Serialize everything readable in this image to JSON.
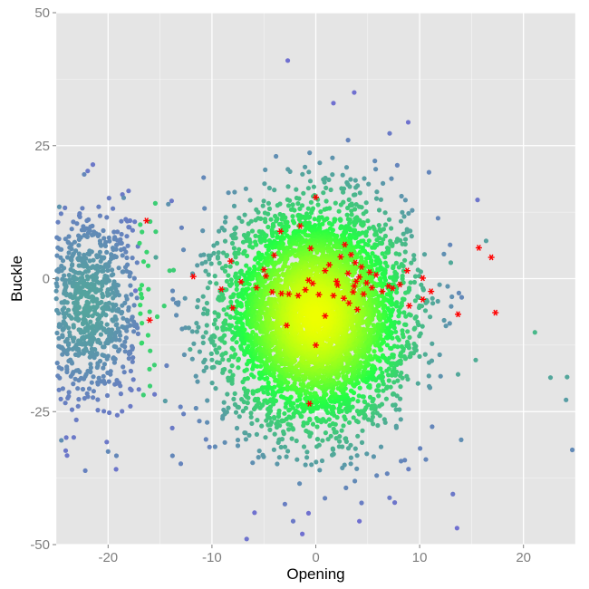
{
  "chart_data": {
    "type": "scatter",
    "title": "",
    "xlabel": "Opening",
    "ylabel": "Buckle",
    "xlim": [
      -25,
      25
    ],
    "ylim": [
      -50,
      50
    ],
    "x_ticks": [
      -20,
      -10,
      0,
      10,
      20
    ],
    "y_ticks": [
      -50,
      -25,
      0,
      25,
      50
    ],
    "x_tick_labels": [
      "-20",
      "-10",
      "0",
      "10",
      "20"
    ],
    "y_tick_labels": [
      "-50",
      "-25",
      "0",
      "25",
      "50"
    ],
    "grid": true,
    "legend": "none",
    "colors": {
      "panel_background": "#e5e5e5",
      "gridline": "#ffffff",
      "density_high": "#eeff00",
      "density_mid": "#22ff44",
      "density_low": "#7070d0",
      "highlight": "#ff0000"
    },
    "density_cloud": {
      "description_values": {
        "main_cluster_center": [
          0,
          -7
        ],
        "main_cluster_sd": [
          4.3,
          10
        ],
        "left_cluster_center": [
          -22,
          -5
        ],
        "left_cluster_sd": [
          2.8,
          9
        ]
      },
      "scattered_points": [
        {
          "x": -2.7,
          "y": 41
        },
        {
          "x": 3.7,
          "y": 35
        },
        {
          "x": 1.7,
          "y": 33
        },
        {
          "x": -22.3,
          "y": 19.6
        },
        {
          "x": -24.7,
          "y": 13.5
        },
        {
          "x": -18.5,
          "y": 15.2
        },
        {
          "x": -14.2,
          "y": 14.0
        },
        {
          "x": -10.8,
          "y": 19.0
        },
        {
          "x": 16.4,
          "y": 7.1
        },
        {
          "x": 21.1,
          "y": -10.1
        },
        {
          "x": 22.6,
          "y": -18.6
        },
        {
          "x": 24.2,
          "y": -18.5
        },
        {
          "x": 24.1,
          "y": -22.8
        },
        {
          "x": 24.7,
          "y": -32.2
        },
        {
          "x": 13.2,
          "y": -40.5
        },
        {
          "x": 13.6,
          "y": -46.9
        },
        {
          "x": -1.3,
          "y": -48.0
        },
        {
          "x": -0.7,
          "y": -44.1
        },
        {
          "x": 4.2,
          "y": -45.6
        },
        {
          "x": -24.5,
          "y": -30.4
        },
        {
          "x": -22.2,
          "y": -36.1
        },
        {
          "x": -13.0,
          "y": -34.8
        },
        {
          "x": -13.8,
          "y": -33.3
        },
        {
          "x": -20.0,
          "y": -32.5
        },
        {
          "x": -19.2,
          "y": -33.3
        },
        {
          "x": 14.0,
          "y": -30.3
        },
        {
          "x": 10.6,
          "y": -34.0
        },
        {
          "x": -9.7,
          "y": -31.6
        },
        {
          "x": 13.7,
          "y": -18.0
        },
        {
          "x": -14.5,
          "y": -23.0
        },
        {
          "x": 15.4,
          "y": -15.3
        },
        {
          "x": -12.1,
          "y": -13.3
        },
        {
          "x": -15.4,
          "y": 4.0
        },
        {
          "x": 13.0,
          "y": 3.0
        },
        {
          "x": -5.9,
          "y": -44.0
        },
        {
          "x": 7.6,
          "y": -42.1
        },
        {
          "x": 10.9,
          "y": 20.0
        },
        {
          "x": 8.9,
          "y": 29.4
        }
      ]
    },
    "highlighted_points": [
      {
        "x": -16.3,
        "y": 10.9
      },
      {
        "x": -16.0,
        "y": -7.8
      },
      {
        "x": -11.8,
        "y": 0.4
      },
      {
        "x": -9.1,
        "y": -2.0
      },
      {
        "x": -8.2,
        "y": 3.3
      },
      {
        "x": -8.0,
        "y": -5.5
      },
      {
        "x": -7.2,
        "y": -0.6
      },
      {
        "x": -5.7,
        "y": -1.7
      },
      {
        "x": -5.0,
        "y": 1.7
      },
      {
        "x": -4.8,
        "y": 0.5
      },
      {
        "x": -4.2,
        "y": -2.5
      },
      {
        "x": -4.0,
        "y": 4.4
      },
      {
        "x": -3.3,
        "y": -2.8
      },
      {
        "x": -3.4,
        "y": 8.9
      },
      {
        "x": -2.8,
        "y": -8.8
      },
      {
        "x": -2.6,
        "y": -2.9
      },
      {
        "x": -1.7,
        "y": -3.2
      },
      {
        "x": -1.5,
        "y": 9.9
      },
      {
        "x": -1.0,
        "y": -2.1
      },
      {
        "x": -0.7,
        "y": -0.3
      },
      {
        "x": -0.5,
        "y": 5.7
      },
      {
        "x": -0.3,
        "y": -0.9
      },
      {
        "x": 0.0,
        "y": -12.5
      },
      {
        "x": 0.0,
        "y": 15.3
      },
      {
        "x": 0.3,
        "y": -3.0
      },
      {
        "x": 0.9,
        "y": 1.5
      },
      {
        "x": 0.9,
        "y": -7.0
      },
      {
        "x": 1.3,
        "y": 2.6
      },
      {
        "x": 1.7,
        "y": -3.2
      },
      {
        "x": 2.0,
        "y": -0.5
      },
      {
        "x": 2.1,
        "y": -1.2
      },
      {
        "x": 2.4,
        "y": 4.1
      },
      {
        "x": 2.7,
        "y": -3.7
      },
      {
        "x": 2.8,
        "y": 6.4
      },
      {
        "x": 3.1,
        "y": 1.0
      },
      {
        "x": 3.2,
        "y": -4.6
      },
      {
        "x": 3.4,
        "y": 4.5
      },
      {
        "x": 3.6,
        "y": -2.5
      },
      {
        "x": 3.7,
        "y": -1.4
      },
      {
        "x": 3.8,
        "y": 3.0
      },
      {
        "x": 3.9,
        "y": -0.5
      },
      {
        "x": 4.0,
        "y": -5.8
      },
      {
        "x": 4.2,
        "y": 0.3
      },
      {
        "x": 4.4,
        "y": 2.2
      },
      {
        "x": 4.6,
        "y": -2.9
      },
      {
        "x": 4.9,
        "y": -0.8
      },
      {
        "x": 5.2,
        "y": 1.2
      },
      {
        "x": 5.4,
        "y": -1.7
      },
      {
        "x": 5.8,
        "y": 0.7
      },
      {
        "x": 6.4,
        "y": -2.4
      },
      {
        "x": 7.0,
        "y": -1.4
      },
      {
        "x": 7.4,
        "y": -1.8
      },
      {
        "x": 8.1,
        "y": -1.1
      },
      {
        "x": 8.8,
        "y": 1.5
      },
      {
        "x": 9.0,
        "y": -5.1
      },
      {
        "x": 10.3,
        "y": -3.9
      },
      {
        "x": 10.3,
        "y": 0.1
      },
      {
        "x": 11.1,
        "y": -2.4
      },
      {
        "x": 13.7,
        "y": -6.7
      },
      {
        "x": 15.7,
        "y": 5.8
      },
      {
        "x": 16.9,
        "y": 4.0
      },
      {
        "x": 17.3,
        "y": -6.4
      },
      {
        "x": -0.6,
        "y": -23.5
      }
    ]
  }
}
